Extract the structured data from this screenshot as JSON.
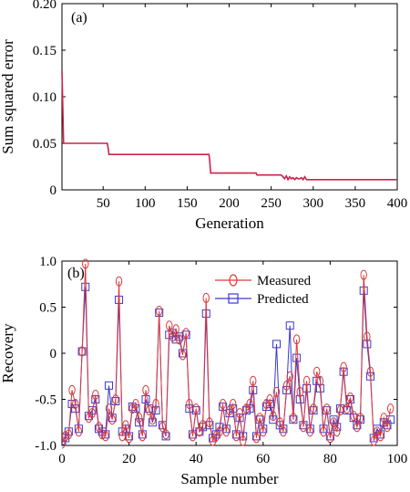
{
  "chart_data": [
    {
      "type": "line",
      "panel_label": "(a)",
      "xlabel": "Generation",
      "ylabel": "Sum squared error",
      "xlim": [
        1,
        400
      ],
      "ylim": [
        0,
        0.2
      ],
      "xticks": [
        50,
        100,
        150,
        200,
        250,
        300,
        350,
        400
      ],
      "xtick_labels": [
        "50",
        "100",
        "150",
        "200",
        "250",
        "300",
        "350",
        "400"
      ],
      "yticks": [
        0,
        0.05,
        0.1,
        0.15,
        0.2
      ],
      "ytick_labels": [
        "0",
        "0.05",
        "0.10",
        "0.15",
        "0.20"
      ],
      "grid": false,
      "color": "#d0204a",
      "series": [
        {
          "x": [
            1,
            2,
            3,
            4,
            5,
            55,
            56,
            57,
            176,
            177,
            178,
            232,
            233,
            262,
            264,
            266,
            268,
            270,
            272,
            274,
            276,
            278,
            280,
            282,
            284,
            286,
            288,
            290,
            292,
            400
          ],
          "values": [
            0.128,
            0.09,
            0.05,
            0.05,
            0.05,
            0.05,
            0.045,
            0.038,
            0.038,
            0.03,
            0.018,
            0.018,
            0.016,
            0.016,
            0.014,
            0.012,
            0.015,
            0.011,
            0.014,
            0.012,
            0.013,
            0.011,
            0.013,
            0.012,
            0.012,
            0.013,
            0.011,
            0.014,
            0.011,
            0.011
          ]
        }
      ]
    },
    {
      "type": "line",
      "panel_label": "(b)",
      "xlabel": "Sample number",
      "ylabel": "Recovery",
      "xlim": [
        0,
        100
      ],
      "ylim": [
        -1,
        1
      ],
      "xticks": [
        0,
        20,
        40,
        60,
        80,
        100
      ],
      "xtick_labels": [
        "0",
        "20",
        "40",
        "60",
        "80",
        "100"
      ],
      "yticks": [
        -1,
        -0.5,
        0,
        0.5,
        1
      ],
      "ytick_labels": [
        "-1.0",
        "-0.5",
        "0",
        "0.5",
        "1.0"
      ],
      "grid": false,
      "legend": "top-right",
      "series": [
        {
          "name": "Measured",
          "color": "#dd3b3b",
          "marker": "diamond-circle",
          "values": [
            -0.98,
            -0.9,
            -0.88,
            -0.4,
            -0.55,
            -0.85,
            0.02,
            0.97,
            -0.7,
            -0.65,
            -0.45,
            -0.8,
            -0.88,
            -0.9,
            -0.6,
            -0.72,
            -0.5,
            0.78,
            -0.9,
            -0.78,
            -0.92,
            -0.6,
            -0.55,
            -0.7,
            -0.9,
            -0.4,
            -0.62,
            -0.72,
            -0.55,
            0.46,
            -0.8,
            -0.88,
            0.3,
            0.18,
            0.26,
            0.15,
            -0.02,
            0.22,
            -0.55,
            -0.9,
            -0.6,
            -0.85,
            -0.78,
            0.6,
            -0.75,
            -0.95,
            -0.9,
            -0.85,
            -0.55,
            -0.85,
            -0.62,
            -0.55,
            -0.9,
            -0.65,
            -0.95,
            -0.6,
            -0.55,
            -0.3,
            -0.92,
            -0.7,
            -0.85,
            -0.55,
            -0.5,
            -0.68,
            -0.42,
            -0.75,
            -0.85,
            -0.35,
            -0.25,
            -0.7,
            0.15,
            -0.42,
            -0.8,
            -0.3,
            -0.85,
            -0.6,
            -0.2,
            -0.3,
            -0.85,
            -0.6,
            -0.92,
            -0.75,
            -0.85,
            -0.62,
            -0.15,
            -0.6,
            -0.48,
            -0.68,
            -0.8,
            -0.7,
            0.85,
            0.18,
            -0.2,
            -0.95,
            -0.85,
            -0.9,
            -0.7,
            -0.8,
            -0.6
          ]
        },
        {
          "name": "Predicted",
          "color": "#3a3ad0",
          "marker": "square",
          "values": [
            -0.95,
            -0.92,
            -0.85,
            -0.55,
            -0.6,
            -0.82,
            0.02,
            0.72,
            -0.68,
            -0.62,
            -0.5,
            -0.82,
            -0.85,
            -0.88,
            -0.35,
            -0.7,
            -0.52,
            0.58,
            -0.85,
            -0.82,
            -0.9,
            -0.58,
            -0.6,
            -0.75,
            -0.88,
            -0.5,
            -0.6,
            -0.75,
            -0.62,
            0.44,
            -0.78,
            -0.9,
            0.2,
            0.22,
            0.15,
            0.18,
            0.0,
            0.2,
            -0.6,
            -0.88,
            -0.62,
            -0.85,
            -0.8,
            0.43,
            -0.78,
            -0.92,
            -0.88,
            -0.8,
            -0.58,
            -0.82,
            -0.65,
            -0.6,
            -0.88,
            -0.7,
            -0.9,
            -0.62,
            -0.6,
            -0.4,
            -0.9,
            -0.72,
            -0.82,
            -0.58,
            -0.55,
            -0.72,
            0.1,
            -0.78,
            -0.82,
            -0.4,
            0.3,
            -0.72,
            -0.05,
            -0.5,
            -0.78,
            -0.38,
            -0.82,
            -0.62,
            -0.3,
            -0.38,
            -0.82,
            -0.62,
            -0.9,
            -0.72,
            -0.8,
            -0.6,
            -0.2,
            -0.62,
            -0.5,
            -0.7,
            -0.78,
            -0.72,
            0.68,
            0.1,
            -0.25,
            -0.92,
            -0.82,
            -0.88,
            -0.75,
            -0.78,
            -0.72
          ]
        }
      ]
    }
  ]
}
